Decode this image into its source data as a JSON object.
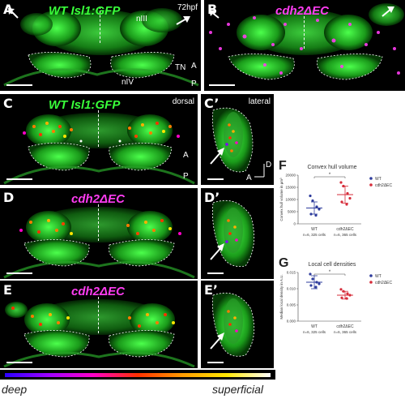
{
  "panels": {
    "A": {
      "letter": "A",
      "title": "WT Isl1:GFP",
      "time": "72hpf",
      "labels": [
        "nIII",
        "nIV",
        "TN"
      ],
      "axis_top": "A",
      "axis_bottom": "P"
    },
    "B": {
      "letter": "B",
      "title": "cdh2ΔEC"
    },
    "C": {
      "letter": "C",
      "title": "WT Isl1:GFP",
      "view": "dorsal",
      "axis_top": "A",
      "axis_bottom": "P"
    },
    "Cp": {
      "letter": "C’",
      "view": "lateral",
      "axis_d": "D",
      "axis_a": "A"
    },
    "D": {
      "letter": "D",
      "title": "cdh2ΔEC"
    },
    "Dp": {
      "letter": "D’"
    },
    "E": {
      "letter": "E",
      "title": "cdh2ΔEC"
    },
    "Ep": {
      "letter": "E’"
    }
  },
  "colorbar": {
    "left_label": "deep",
    "right_label": "superficial"
  },
  "colors": {
    "wt": "#2e3c9c",
    "cdh2": "#d62c3a",
    "gfp": "#39ff3a",
    "magenta": "#ff3cf2"
  },
  "chart_data": [
    {
      "panel": "F",
      "type": "scatter",
      "title": "Convex hull volume",
      "ylabel": "Convex hull volume in μm³",
      "categories": [
        "WT",
        "cdh2ΔEC"
      ],
      "category_sublabels": [
        "n=6, 325 cells",
        "n=6, 365 cells"
      ],
      "legend": [
        "WT",
        "cdh2ΔEC"
      ],
      "legend_placement": "right",
      "ylim": [
        0,
        20000
      ],
      "means": [
        6500,
        12000
      ],
      "sd": [
        2500,
        3500
      ],
      "points": [
        [
          11500,
          9500,
          7000,
          6000,
          4000,
          3500
        ],
        [
          17000,
          15500,
          12500,
          10500,
          9000,
          8000
        ]
      ],
      "significance": "*"
    },
    {
      "panel": "G",
      "type": "scatter",
      "title": "Local cell densities",
      "ylabel": "Median local density in A.U.",
      "categories": [
        "WT",
        "cdh2ΔEC"
      ],
      "category_sublabels": [
        "n=6, 325 cells",
        "n=6, 365 cells"
      ],
      "legend": [
        "WT",
        "cdh2ΔEC"
      ],
      "legend_placement": "right",
      "ylim": [
        0.0,
        0.015
      ],
      "yticks": [
        "0.000",
        "0.005",
        "0.010",
        "0.015"
      ],
      "means": [
        0.012,
        0.008
      ],
      "sd": [
        0.002,
        0.0012
      ],
      "points": [
        [
          0.0145,
          0.013,
          0.012,
          0.0115,
          0.011,
          0.0105
        ],
        [
          0.0098,
          0.0092,
          0.0085,
          0.008,
          0.0072,
          0.007
        ]
      ],
      "significance": "*"
    }
  ]
}
